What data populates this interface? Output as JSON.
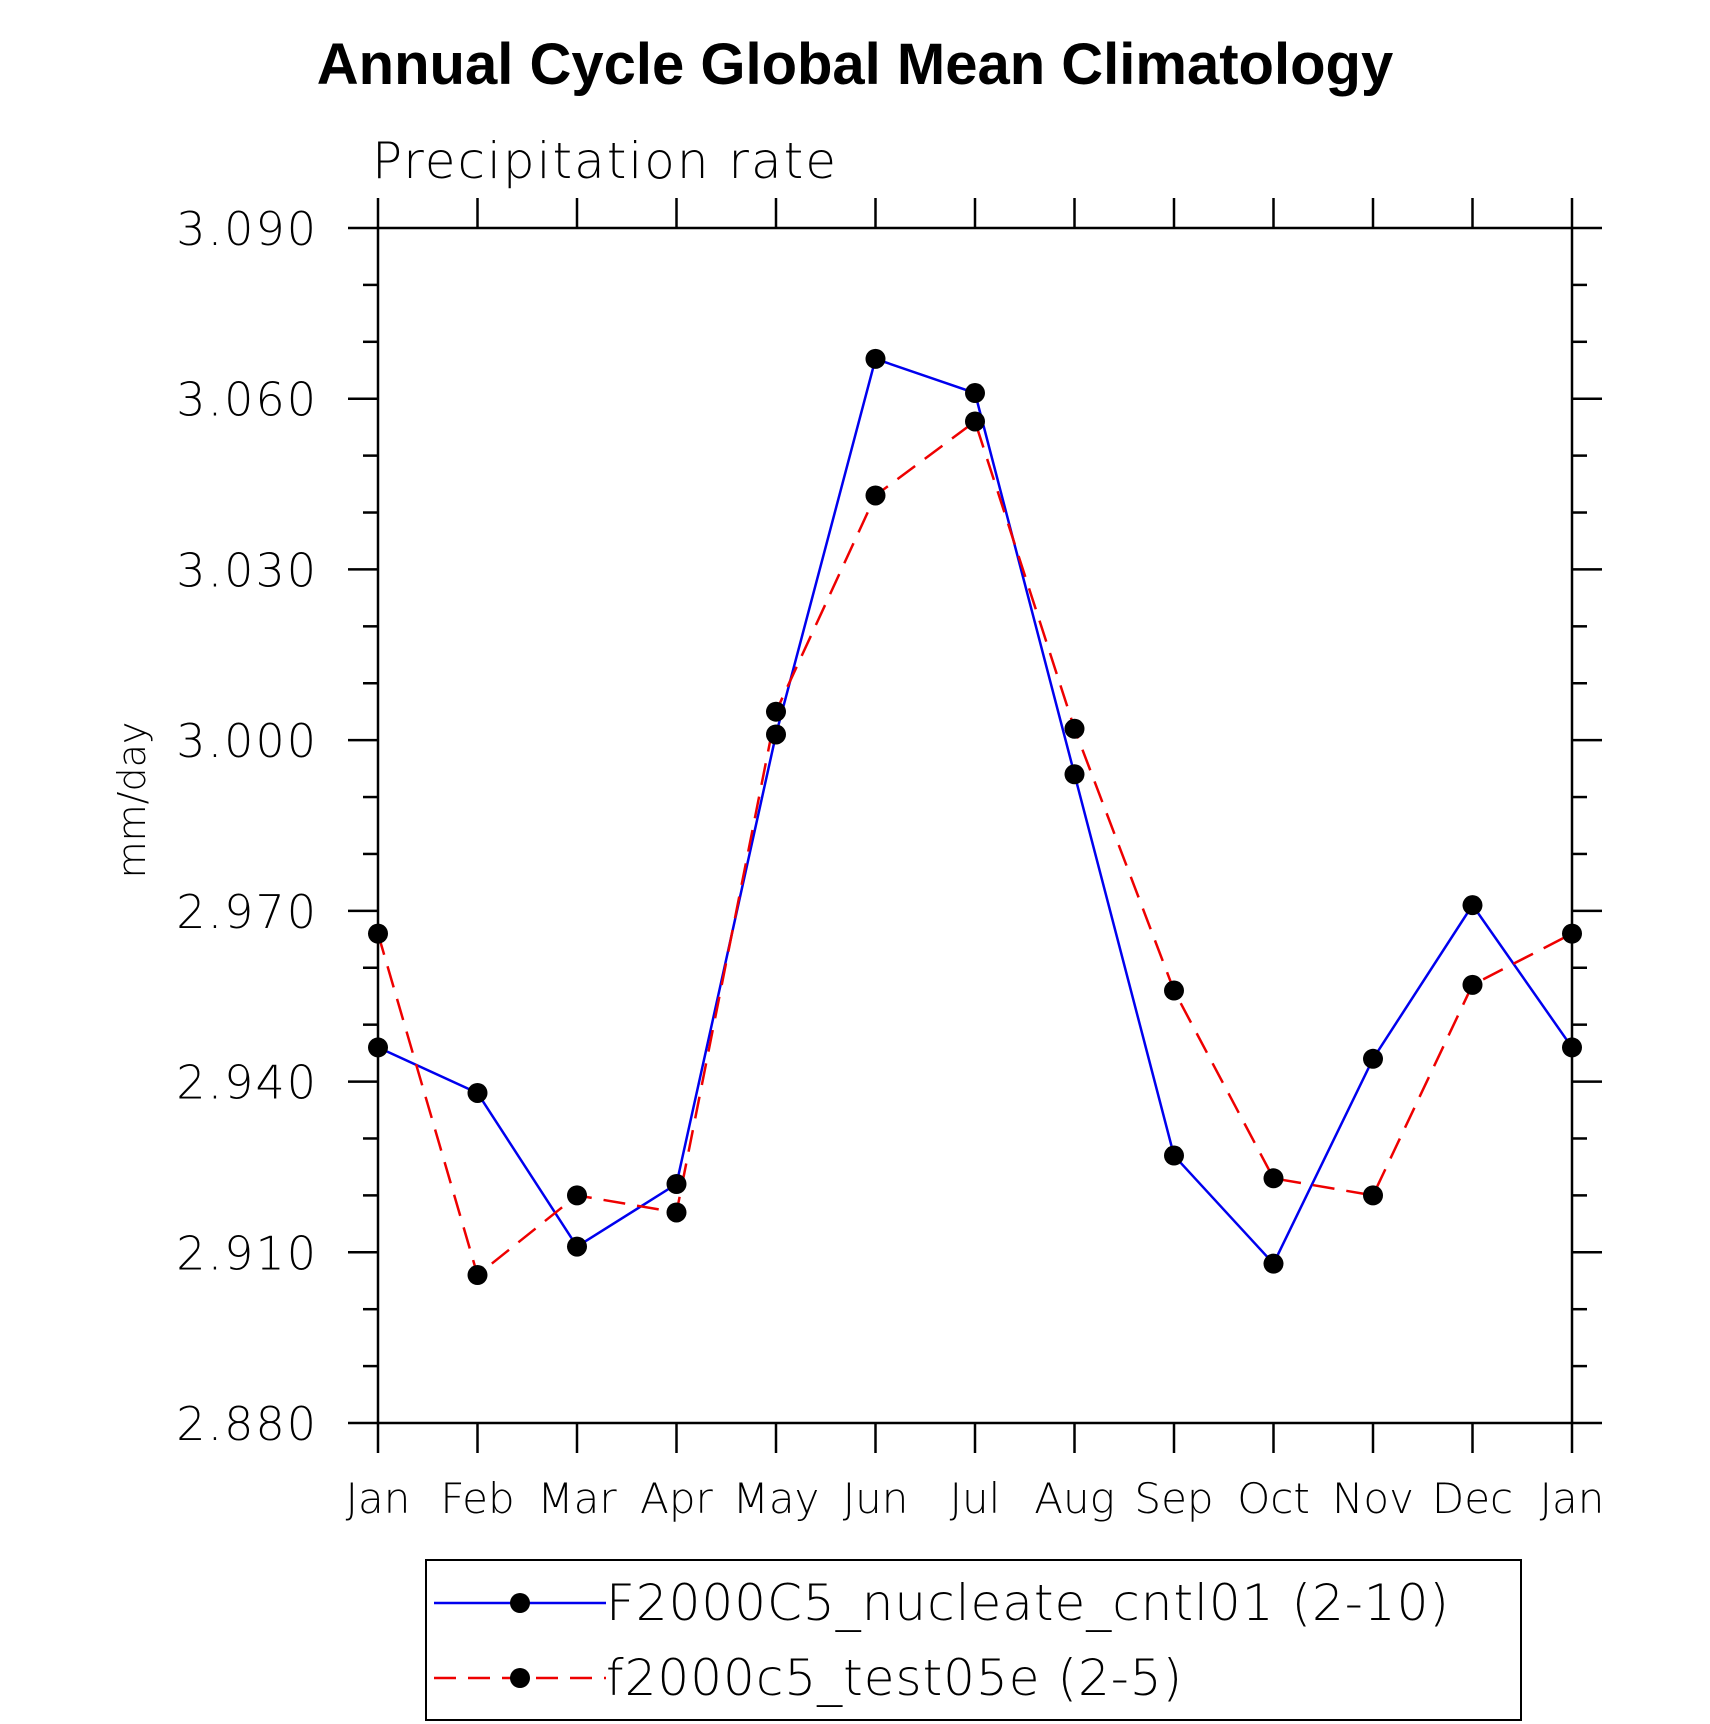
{
  "chart_data": {
    "type": "line",
    "title": "Annual Cycle Global Mean Climatology",
    "subtitle": "Precipitation rate",
    "xlabel": "",
    "ylabel": "mm/day",
    "categories": [
      "Jan",
      "Feb",
      "Mar",
      "Apr",
      "May",
      "Jun",
      "Jul",
      "Aug",
      "Sep",
      "Oct",
      "Nov",
      "Dec",
      "Jan"
    ],
    "ylim": [
      2.88,
      3.09
    ],
    "yticks": [
      "2.880",
      "2.910",
      "2.940",
      "2.970",
      "3.000",
      "3.030",
      "3.060",
      "3.090"
    ],
    "yticks_values": [
      2.88,
      2.91,
      2.94,
      2.97,
      3.0,
      3.03,
      3.06,
      3.09
    ],
    "grid": false,
    "legend_position": "bottom",
    "series": [
      {
        "name": "F2000C5_nucleate_cntl01 (2-10)",
        "color": "#0000ee",
        "line_style": "solid",
        "values": [
          2.946,
          2.938,
          2.911,
          2.922,
          3.001,
          3.067,
          3.061,
          2.994,
          2.927,
          2.908,
          2.944,
          2.971,
          2.946
        ]
      },
      {
        "name": "f2000c5_test05e (2-5)",
        "color": "#ee0000",
        "line_style": "dashed",
        "values": [
          2.966,
          2.906,
          2.92,
          2.917,
          3.005,
          3.043,
          3.056,
          3.002,
          2.956,
          2.923,
          2.92,
          2.957,
          2.966
        ]
      }
    ]
  }
}
